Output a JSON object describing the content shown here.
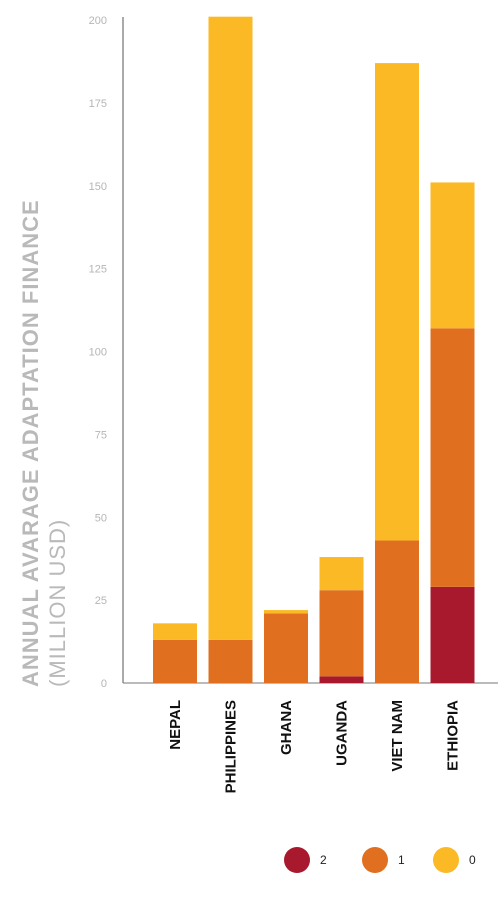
{
  "chart_data": {
    "type": "bar",
    "stacked": true,
    "categories": [
      "NEPAL",
      "PHILIPPINES",
      "GHANA",
      "UGANDA",
      "VIET NAM",
      "ETHIOPIA"
    ],
    "series": [
      {
        "name": "2",
        "color": "#a8192e",
        "values": [
          0,
          0,
          0,
          2,
          0,
          29
        ]
      },
      {
        "name": "1",
        "color": "#e07020",
        "values": [
          13,
          13,
          21,
          26,
          43,
          78
        ]
      },
      {
        "name": "0",
        "color": "#fbb925",
        "values": [
          5,
          188,
          1,
          10,
          144,
          44
        ]
      }
    ],
    "ylabel": "ANNUAL AVARAGE ADAPTATION FINANCE",
    "ylabel_sub": "(MILLION USD)",
    "yticks": [
      0,
      25,
      50,
      75,
      100,
      125,
      150,
      175,
      200
    ],
    "ylim": [
      0,
      200
    ],
    "legend_position": "bottom-right",
    "grid": false
  }
}
